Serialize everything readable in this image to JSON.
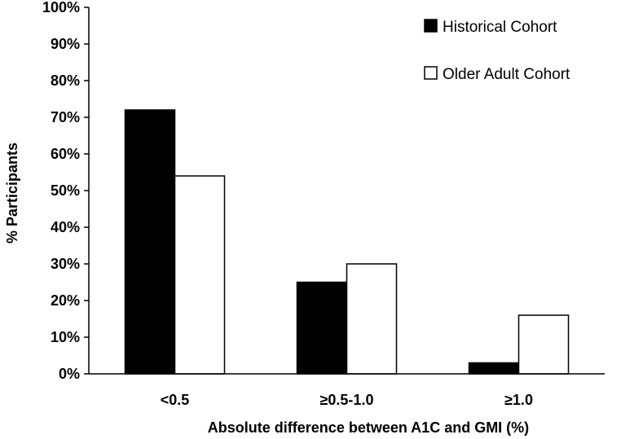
{
  "chart_data": {
    "type": "bar",
    "categories": [
      "<0.5",
      "≥0.5-1.0",
      "≥1.0"
    ],
    "series": [
      {
        "name": "Historical Cohort",
        "values": [
          72,
          25,
          3
        ],
        "color": "#000000"
      },
      {
        "name": "Older Adult Cohort",
        "values": [
          54,
          30,
          16
        ],
        "color": "#ffffff"
      }
    ],
    "ylim": [
      0,
      100
    ],
    "yticks": [
      "0%",
      "10%",
      "20%",
      "30%",
      "40%",
      "50%",
      "60%",
      "70%",
      "80%",
      "90%",
      "100%"
    ],
    "ylabel": "% Participants",
    "xlabel": "Absolute difference between A1C and GMI (%)",
    "legend_position": "top-right",
    "grid": false
  }
}
